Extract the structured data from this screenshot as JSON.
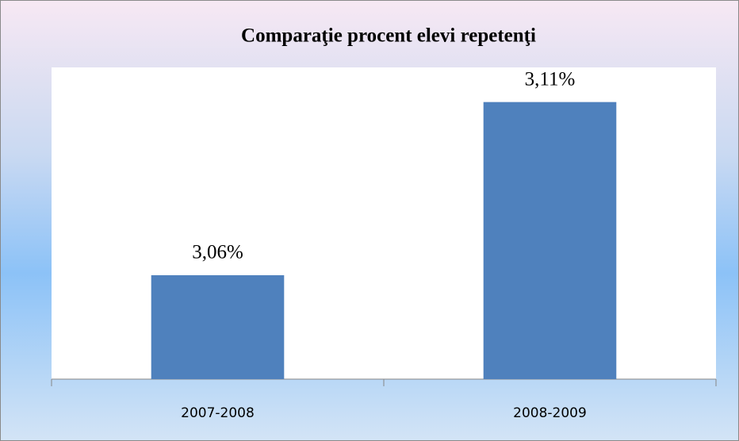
{
  "chart_data": {
    "type": "bar",
    "title": "Comparaţie procent elevi repetenţi",
    "categories": [
      "2007-2008",
      "2008-2009"
    ],
    "values": [
      3.06,
      3.11
    ],
    "value_labels": [
      "3,06%",
      "3,11%"
    ],
    "color": "#4f81bd",
    "ylim": [
      3.03,
      3.12
    ]
  }
}
